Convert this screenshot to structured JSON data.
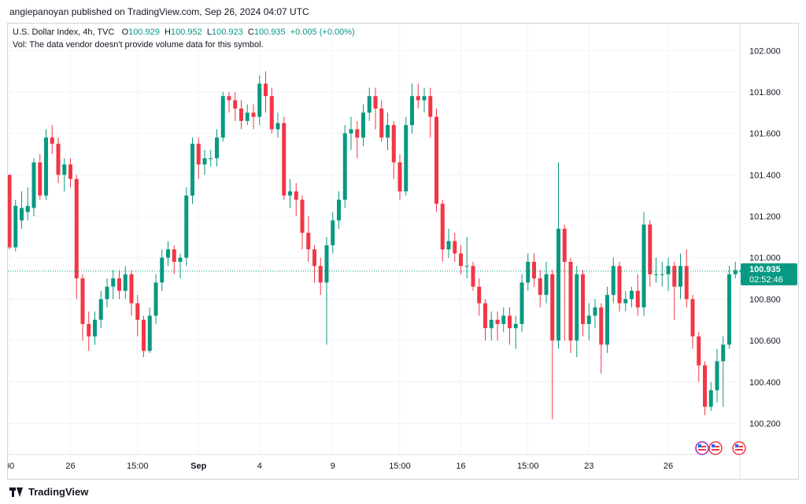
{
  "header": {
    "published_by": "angiepanoyan published on TradingView.com, Sep 26, 2024 04:07 UTC"
  },
  "legend": {
    "symbol": "U.S. Dollar Index, 4h, TVC",
    "open_label": "O",
    "open": "100.929",
    "high_label": "H",
    "high": "100.952",
    "low_label": "L",
    "low": "100.923",
    "close_label": "C",
    "close": "100.935",
    "change": "+0.005 (+0.00%)",
    "vol_note": "Vol: The data vendor doesn't provide volume data for this symbol."
  },
  "price_badge": {
    "price": "100.935",
    "countdown": "02:52:46"
  },
  "footer": {
    "brand": "TradingView"
  },
  "colors": {
    "up": "#089981",
    "down": "#f23645",
    "grid": "#f0f3fa",
    "badge": "#089981"
  },
  "chart_data": {
    "type": "candlestick",
    "title": "U.S. Dollar Index, 4h, TVC",
    "y_ticks": [
      "102.000",
      "101.800",
      "101.600",
      "101.400",
      "101.200",
      "101.000",
      "100.800",
      "100.600",
      "100.400",
      "100.200"
    ],
    "y_tick_values": [
      102.0,
      101.8,
      101.6,
      101.4,
      101.2,
      101.0,
      100.8,
      100.6,
      100.4,
      100.2
    ],
    "ylim": [
      100.05,
      102.13
    ],
    "x_ticks": [
      {
        "label": "00",
        "index": 0,
        "bold": false
      },
      {
        "label": "26",
        "index": 10,
        "bold": false
      },
      {
        "label": "15:00",
        "index": 21,
        "bold": false
      },
      {
        "label": "Sep",
        "index": 31,
        "bold": true
      },
      {
        "label": "4",
        "index": 41,
        "bold": false
      },
      {
        "label": "9",
        "index": 53,
        "bold": false
      },
      {
        "label": "15:00",
        "index": 64,
        "bold": false
      },
      {
        "label": "16",
        "index": 74,
        "bold": false
      },
      {
        "label": "15:00",
        "index": 85,
        "bold": false
      },
      {
        "label": "23",
        "index": 95,
        "bold": false
      },
      {
        "label": "26",
        "index": 108,
        "bold": false
      }
    ],
    "last_price": 100.935,
    "grid": true,
    "candles": [
      [
        101.4,
        101.05,
        101.4,
        101.04
      ],
      [
        101.05,
        101.25,
        101.28,
        101.03
      ],
      [
        101.18,
        101.24,
        101.32,
        101.14
      ],
      [
        101.22,
        101.25,
        101.34,
        101.18
      ],
      [
        101.24,
        101.46,
        101.48,
        101.2
      ],
      [
        101.46,
        101.3,
        101.5,
        101.28
      ],
      [
        101.3,
        101.58,
        101.62,
        101.28
      ],
      [
        101.58,
        101.55,
        101.64,
        101.5
      ],
      [
        101.55,
        101.4,
        101.58,
        101.36
      ],
      [
        101.4,
        101.45,
        101.48,
        101.32
      ],
      [
        101.45,
        101.38,
        101.48,
        101.34
      ],
      [
        101.38,
        100.9,
        101.4,
        100.8
      ],
      [
        100.9,
        100.68,
        100.92,
        100.6
      ],
      [
        100.68,
        100.62,
        100.74,
        100.55
      ],
      [
        100.62,
        100.7,
        100.74,
        100.58
      ],
      [
        100.7,
        100.8,
        100.84,
        100.66
      ],
      [
        100.8,
        100.86,
        100.9,
        100.76
      ],
      [
        100.86,
        100.9,
        100.94,
        100.8
      ],
      [
        100.9,
        100.84,
        100.94,
        100.8
      ],
      [
        100.84,
        100.92,
        100.96,
        100.8
      ],
      [
        100.92,
        100.78,
        100.94,
        100.72
      ],
      [
        100.78,
        100.7,
        100.82,
        100.62
      ],
      [
        100.7,
        100.55,
        100.72,
        100.52
      ],
      [
        100.55,
        100.72,
        100.76,
        100.54
      ],
      [
        100.72,
        100.88,
        100.92,
        100.68
      ],
      [
        100.88,
        101.0,
        101.04,
        100.84
      ],
      [
        101.0,
        101.04,
        101.08,
        100.96
      ],
      [
        101.04,
        100.98,
        101.06,
        100.92
      ],
      [
        100.98,
        101.0,
        101.02,
        100.9
      ],
      [
        101.0,
        101.3,
        101.34,
        100.96
      ],
      [
        101.3,
        101.55,
        101.58,
        101.26
      ],
      [
        101.55,
        101.45,
        101.58,
        101.38
      ],
      [
        101.45,
        101.48,
        101.52,
        101.4
      ],
      [
        101.48,
        101.48,
        101.52,
        101.44
      ],
      [
        101.48,
        101.58,
        101.62,
        101.44
      ],
      [
        101.58,
        101.78,
        101.8,
        101.56
      ],
      [
        101.78,
        101.76,
        101.8,
        101.7
      ],
      [
        101.76,
        101.72,
        101.8,
        101.66
      ],
      [
        101.72,
        101.66,
        101.76,
        101.62
      ],
      [
        101.66,
        101.7,
        101.74,
        101.64
      ],
      [
        101.7,
        101.68,
        101.74,
        101.62
      ],
      [
        101.68,
        101.84,
        101.88,
        101.64
      ],
      [
        101.84,
        101.78,
        101.9,
        101.7
      ],
      [
        101.78,
        101.62,
        101.82,
        101.6
      ],
      [
        101.62,
        101.65,
        101.7,
        101.58
      ],
      [
        101.65,
        101.3,
        101.68,
        101.28
      ],
      [
        101.3,
        101.32,
        101.38,
        101.24
      ],
      [
        101.32,
        101.28,
        101.36,
        101.2
      ],
      [
        101.28,
        101.12,
        101.3,
        101.04
      ],
      [
        101.12,
        101.04,
        101.2,
        100.98
      ],
      [
        101.04,
        100.96,
        101.06,
        100.88
      ],
      [
        100.96,
        100.88,
        101.0,
        100.82
      ],
      [
        100.88,
        101.06,
        101.1,
        100.58
      ],
      [
        101.06,
        101.18,
        101.22,
        101.02
      ],
      [
        101.18,
        101.28,
        101.32,
        101.14
      ],
      [
        101.28,
        101.6,
        101.64,
        101.24
      ],
      [
        101.6,
        101.62,
        101.68,
        101.52
      ],
      [
        101.62,
        101.58,
        101.66,
        101.48
      ],
      [
        101.58,
        101.7,
        101.74,
        101.54
      ],
      [
        101.7,
        101.78,
        101.82,
        101.66
      ],
      [
        101.78,
        101.72,
        101.82,
        101.62
      ],
      [
        101.72,
        101.58,
        101.76,
        101.56
      ],
      [
        101.58,
        101.64,
        101.7,
        101.52
      ],
      [
        101.64,
        101.46,
        101.66,
        101.38
      ],
      [
        101.46,
        101.32,
        101.5,
        101.28
      ],
      [
        101.32,
        101.64,
        101.68,
        101.3
      ],
      [
        101.64,
        101.78,
        101.84,
        101.6
      ],
      [
        101.78,
        101.76,
        101.84,
        101.72
      ],
      [
        101.76,
        101.78,
        101.82,
        101.7
      ],
      [
        101.78,
        101.68,
        101.82,
        101.58
      ],
      [
        101.68,
        101.26,
        101.72,
        101.22
      ],
      [
        101.26,
        101.04,
        101.28,
        100.98
      ],
      [
        101.04,
        101.08,
        101.14,
        101.0
      ],
      [
        101.08,
        101.02,
        101.12,
        100.98
      ],
      [
        101.02,
        100.96,
        101.06,
        100.92
      ],
      [
        100.96,
        100.96,
        101.1,
        100.9
      ],
      [
        100.96,
        100.86,
        100.98,
        100.84
      ],
      [
        100.86,
        100.78,
        100.9,
        100.72
      ],
      [
        100.78,
        100.66,
        100.8,
        100.6
      ],
      [
        100.66,
        100.7,
        100.74,
        100.6
      ],
      [
        100.7,
        100.68,
        100.74,
        100.6
      ],
      [
        100.68,
        100.72,
        100.76,
        100.64
      ],
      [
        100.72,
        100.66,
        100.76,
        100.58
      ],
      [
        100.66,
        100.68,
        100.72,
        100.56
      ],
      [
        100.68,
        100.88,
        100.92,
        100.64
      ],
      [
        100.88,
        100.98,
        101.02,
        100.84
      ],
      [
        100.98,
        100.9,
        101.02,
        100.86
      ],
      [
        100.9,
        100.82,
        100.94,
        100.76
      ],
      [
        100.82,
        100.92,
        100.98,
        100.78
      ],
      [
        100.92,
        100.6,
        100.94,
        100.22
      ],
      [
        100.6,
        101.14,
        101.46,
        100.56
      ],
      [
        101.14,
        100.98,
        101.16,
        100.6
      ],
      [
        100.98,
        100.6,
        101.0,
        100.54
      ],
      [
        100.6,
        100.92,
        100.96,
        100.52
      ],
      [
        100.92,
        100.68,
        100.94,
        100.62
      ],
      [
        100.68,
        100.72,
        100.78,
        100.6
      ],
      [
        100.72,
        100.76,
        100.8,
        100.66
      ],
      [
        100.76,
        100.58,
        100.78,
        100.44
      ],
      [
        100.58,
        100.82,
        100.86,
        100.54
      ],
      [
        100.82,
        100.96,
        101.0,
        100.78
      ],
      [
        100.96,
        100.78,
        100.98,
        100.74
      ],
      [
        100.78,
        100.8,
        100.84,
        100.74
      ],
      [
        100.8,
        100.84,
        100.86,
        100.76
      ],
      [
        100.84,
        100.76,
        100.92,
        100.72
      ],
      [
        100.76,
        101.16,
        101.22,
        100.72
      ],
      [
        101.16,
        100.92,
        101.18,
        100.86
      ],
      [
        100.92,
        100.92,
        101.0,
        100.88
      ],
      [
        100.92,
        100.92,
        100.98,
        100.86
      ],
      [
        100.92,
        100.96,
        101.0,
        100.84
      ],
      [
        100.96,
        100.86,
        100.98,
        100.7
      ],
      [
        100.86,
        100.96,
        101.02,
        100.8
      ],
      [
        100.96,
        100.8,
        101.04,
        100.76
      ],
      [
        100.8,
        100.62,
        100.82,
        100.56
      ],
      [
        100.62,
        100.48,
        100.64,
        100.4
      ],
      [
        100.48,
        100.28,
        100.5,
        100.24
      ],
      [
        100.28,
        100.36,
        100.4,
        100.26
      ],
      [
        100.36,
        100.5,
        100.56,
        100.3
      ],
      [
        100.5,
        100.58,
        100.62,
        100.28
      ],
      [
        100.58,
        100.92,
        100.96,
        100.56
      ],
      [
        100.92,
        100.94,
        100.98,
        100.9
      ],
      [
        100.93,
        100.94,
        100.95,
        100.92
      ],
      [
        100.929,
        100.935,
        100.952,
        100.923
      ]
    ]
  }
}
